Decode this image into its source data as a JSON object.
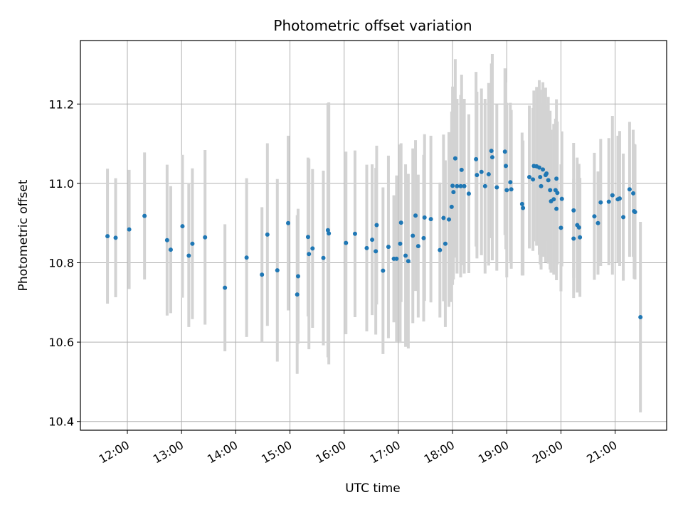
{
  "chart_data": {
    "type": "scatter",
    "title": "Photometric offset variation",
    "xlabel": "UTC time",
    "ylabel": "Photometric offset",
    "xlim": [
      "11:08",
      "21:57"
    ],
    "ylim": [
      10.378,
      11.36
    ],
    "x_ticks": [
      "12:00",
      "13:00",
      "14:00",
      "15:00",
      "16:00",
      "17:00",
      "18:00",
      "19:00",
      "20:00",
      "21:00"
    ],
    "y_ticks": [
      10.4,
      10.6,
      10.8,
      11.0,
      11.2
    ],
    "grid": true,
    "colors": {
      "point": "#1f77b4",
      "errorbar": "#d3d3d3",
      "grid": "#b0b0b0"
    },
    "points": [
      {
        "t": "11:38",
        "y": 10.867,
        "err": 0.17
      },
      {
        "t": "11:47",
        "y": 10.863,
        "err": 0.15
      },
      {
        "t": "12:02",
        "y": 10.884,
        "err": 0.15
      },
      {
        "t": "12:19",
        "y": 10.918,
        "err": 0.16
      },
      {
        "t": "12:44",
        "y": 10.857,
        "err": 0.19
      },
      {
        "t": "12:48",
        "y": 10.833,
        "err": 0.16
      },
      {
        "t": "13:01",
        "y": 10.892,
        "err": 0.18
      },
      {
        "t": "13:08",
        "y": 10.818,
        "err": 0.18
      },
      {
        "t": "13:12",
        "y": 10.848,
        "err": 0.19
      },
      {
        "t": "13:26",
        "y": 10.864,
        "err": 0.22
      },
      {
        "t": "13:48",
        "y": 10.737,
        "err": 0.16
      },
      {
        "t": "14:12",
        "y": 10.813,
        "err": 0.2
      },
      {
        "t": "14:29",
        "y": 10.77,
        "err": 0.17
      },
      {
        "t": "14:35",
        "y": 10.871,
        "err": 0.23
      },
      {
        "t": "14:46",
        "y": 10.781,
        "err": 0.23
      },
      {
        "t": "14:58",
        "y": 10.9,
        "err": 0.22
      },
      {
        "t": "15:08",
        "y": 10.72,
        "err": 0.2
      },
      {
        "t": "15:09",
        "y": 10.766,
        "err": 0.17
      },
      {
        "t": "15:20",
        "y": 10.865,
        "err": 0.2
      },
      {
        "t": "15:21",
        "y": 10.822,
        "err": 0.24
      },
      {
        "t": "15:25",
        "y": 10.836,
        "err": 0.2
      },
      {
        "t": "15:37",
        "y": 10.812,
        "err": 0.22
      },
      {
        "t": "15:42",
        "y": 10.882,
        "err": 0.32
      },
      {
        "t": "15:43",
        "y": 10.874,
        "err": 0.33
      },
      {
        "t": "16:02",
        "y": 10.85,
        "err": 0.23
      },
      {
        "t": "16:12",
        "y": 10.873,
        "err": 0.21
      },
      {
        "t": "16:25",
        "y": 10.837,
        "err": 0.21
      },
      {
        "t": "16:31",
        "y": 10.858,
        "err": 0.19
      },
      {
        "t": "16:35",
        "y": 10.829,
        "err": 0.21
      },
      {
        "t": "16:36",
        "y": 10.895,
        "err": 0.2
      },
      {
        "t": "16:43",
        "y": 10.78,
        "err": 0.21
      },
      {
        "t": "16:49",
        "y": 10.84,
        "err": 0.23
      },
      {
        "t": "16:55",
        "y": 10.81,
        "err": 0.16
      },
      {
        "t": "16:58",
        "y": 10.81,
        "err": 0.21
      },
      {
        "t": "17:02",
        "y": 10.848,
        "err": 0.25
      },
      {
        "t": "17:03",
        "y": 10.901,
        "err": 0.2
      },
      {
        "t": "17:08",
        "y": 10.818,
        "err": 0.23
      },
      {
        "t": "17:11",
        "y": 10.804,
        "err": 0.22
      },
      {
        "t": "17:16",
        "y": 10.868,
        "err": 0.22
      },
      {
        "t": "17:19",
        "y": 10.919,
        "err": 0.19
      },
      {
        "t": "17:22",
        "y": 10.842,
        "err": 0.18
      },
      {
        "t": "17:28",
        "y": 10.862,
        "err": 0.21
      },
      {
        "t": "17:29",
        "y": 10.914,
        "err": 0.21
      },
      {
        "t": "17:36",
        "y": 10.91,
        "err": 0.21
      },
      {
        "t": "17:46",
        "y": 10.832,
        "err": 0.17
      },
      {
        "t": "17:50",
        "y": 10.913,
        "err": 0.21
      },
      {
        "t": "17:52",
        "y": 10.848,
        "err": 0.21
      },
      {
        "t": "17:56",
        "y": 10.909,
        "err": 0.22
      },
      {
        "t": "17:59",
        "y": 10.941,
        "err": 0.24
      },
      {
        "t": "18:00",
        "y": 10.994,
        "err": 0.25
      },
      {
        "t": "18:01",
        "y": 10.978,
        "err": 0.22
      },
      {
        "t": "18:03",
        "y": 11.063,
        "err": 0.25
      },
      {
        "t": "18:05",
        "y": 10.993,
        "err": 0.22
      },
      {
        "t": "18:09",
        "y": 10.993,
        "err": 0.23
      },
      {
        "t": "18:10",
        "y": 11.034,
        "err": 0.24
      },
      {
        "t": "18:13",
        "y": 10.993,
        "err": 0.22
      },
      {
        "t": "18:18",
        "y": 10.974,
        "err": 0.2
      },
      {
        "t": "18:26",
        "y": 11.061,
        "err": 0.22
      },
      {
        "t": "18:27",
        "y": 11.021,
        "err": 0.21
      },
      {
        "t": "18:32",
        "y": 11.029,
        "err": 0.21
      },
      {
        "t": "18:36",
        "y": 10.993,
        "err": 0.22
      },
      {
        "t": "18:40",
        "y": 11.023,
        "err": 0.23
      },
      {
        "t": "18:43",
        "y": 11.082,
        "err": 0.22
      },
      {
        "t": "18:44",
        "y": 11.066,
        "err": 0.26
      },
      {
        "t": "18:49",
        "y": 10.99,
        "err": 0.21
      },
      {
        "t": "18:58",
        "y": 11.08,
        "err": 0.21
      },
      {
        "t": "18:59",
        "y": 11.044,
        "err": 0.21
      },
      {
        "t": "19:00",
        "y": 10.983,
        "err": 0.22
      },
      {
        "t": "19:04",
        "y": 11.003,
        "err": 0.2
      },
      {
        "t": "19:05",
        "y": 10.985,
        "err": 0.2
      },
      {
        "t": "19:17",
        "y": 10.948,
        "err": 0.18
      },
      {
        "t": "19:18",
        "y": 10.938,
        "err": 0.17
      },
      {
        "t": "19:25",
        "y": 11.016,
        "err": 0.18
      },
      {
        "t": "19:29",
        "y": 11.01,
        "err": 0.18
      },
      {
        "t": "19:30",
        "y": 11.044,
        "err": 0.19
      },
      {
        "t": "19:33",
        "y": 11.043,
        "err": 0.2
      },
      {
        "t": "19:36",
        "y": 11.04,
        "err": 0.22
      },
      {
        "t": "19:37",
        "y": 11.016,
        "err": 0.22
      },
      {
        "t": "19:38",
        "y": 10.993,
        "err": 0.21
      },
      {
        "t": "19:40",
        "y": 11.035,
        "err": 0.22
      },
      {
        "t": "19:43",
        "y": 11.021,
        "err": 0.22
      },
      {
        "t": "19:44",
        "y": 11.025,
        "err": 0.17
      },
      {
        "t": "19:46",
        "y": 11.008,
        "err": 0.21
      },
      {
        "t": "19:48",
        "y": 10.983,
        "err": 0.2
      },
      {
        "t": "19:49",
        "y": 10.955,
        "err": 0.18
      },
      {
        "t": "19:52",
        "y": 10.96,
        "err": 0.19
      },
      {
        "t": "19:54",
        "y": 10.983,
        "err": 0.18
      },
      {
        "t": "19:55",
        "y": 11.012,
        "err": 0.2
      },
      {
        "t": "19:55",
        "y": 10.936,
        "err": 0.18
      },
      {
        "t": "19:56",
        "y": 10.976,
        "err": 0.18
      },
      {
        "t": "20:00",
        "y": 10.888,
        "err": 0.16
      },
      {
        "t": "20:01",
        "y": 10.961,
        "err": 0.17
      },
      {
        "t": "20:14",
        "y": 10.861,
        "err": 0.15
      },
      {
        "t": "20:14",
        "y": 10.932,
        "err": 0.17
      },
      {
        "t": "20:18",
        "y": 10.895,
        "err": 0.17
      },
      {
        "t": "20:20",
        "y": 10.889,
        "err": 0.16
      },
      {
        "t": "20:21",
        "y": 10.864,
        "err": 0.15
      },
      {
        "t": "20:37",
        "y": 10.917,
        "err": 0.16
      },
      {
        "t": "20:41",
        "y": 10.9,
        "err": 0.13
      },
      {
        "t": "20:44",
        "y": 10.952,
        "err": 0.16
      },
      {
        "t": "20:53",
        "y": 10.954,
        "err": 0.16
      },
      {
        "t": "20:57",
        "y": 10.97,
        "err": 0.2
      },
      {
        "t": "21:03",
        "y": 10.96,
        "err": 0.16
      },
      {
        "t": "21:05",
        "y": 10.962,
        "err": 0.17
      },
      {
        "t": "21:09",
        "y": 10.915,
        "err": 0.16
      },
      {
        "t": "21:16",
        "y": 10.985,
        "err": 0.17
      },
      {
        "t": "21:20",
        "y": 10.975,
        "err": 0.16
      },
      {
        "t": "21:21",
        "y": 10.93,
        "err": 0.17
      },
      {
        "t": "21:22",
        "y": 10.928,
        "err": 0.17
      },
      {
        "t": "21:28",
        "y": 10.663,
        "err": 0.24
      }
    ]
  }
}
